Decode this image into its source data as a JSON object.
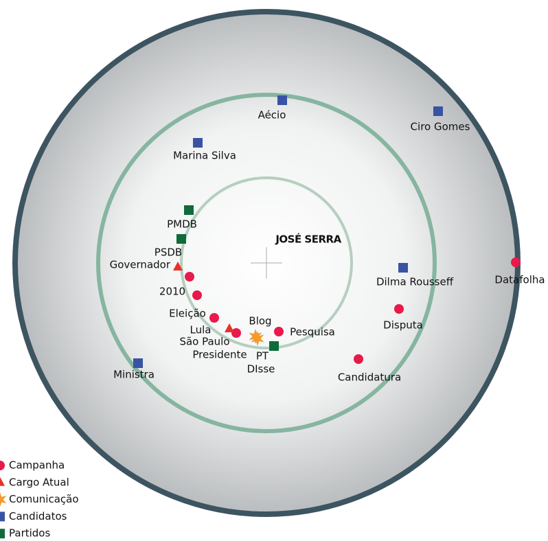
{
  "center": "JOSÉ SERRA",
  "legend": [
    {
      "label": "Campanha",
      "shape": "circle",
      "color": "#e8194b"
    },
    {
      "label": "Cargo Atual",
      "shape": "triangle",
      "color": "#e8312a"
    },
    {
      "label": "Comunicação",
      "shape": "star",
      "color": "#f39a2a"
    },
    {
      "label": "Candidatos",
      "shape": "square",
      "color": "#3953a4"
    },
    {
      "label": "Partidos",
      "shape": "square",
      "color": "#0f6b3a"
    }
  ],
  "nodes": [
    {
      "label": "Aécio",
      "group": 3
    },
    {
      "label": "Ciro Gomes",
      "group": 3
    },
    {
      "label": "Marina Silva",
      "group": 3
    },
    {
      "label": "PMDB",
      "group": 4
    },
    {
      "label": "PSDB",
      "group": 4
    },
    {
      "label": "Governador",
      "group": 1
    },
    {
      "label": "2010",
      "group": 0
    },
    {
      "label": "Eleição",
      "group": 0
    },
    {
      "label": "Lula",
      "group": 0
    },
    {
      "label": "São Paulo",
      "group": 0
    },
    {
      "label": "Presidente",
      "group": 1
    },
    {
      "label": "Blog",
      "group": 2
    },
    {
      "label": "DIsse",
      "group": 2
    },
    {
      "label": "PT",
      "group": 4
    },
    {
      "label": "Pesquisa",
      "group": 0
    },
    {
      "label": "Dilma Rousseff",
      "group": 3
    },
    {
      "label": "Disputa",
      "group": 0
    },
    {
      "label": "Candidatura",
      "group": 0
    },
    {
      "label": "Datafolha",
      "group": 0
    },
    {
      "label": "Ministra",
      "group": 3
    }
  ]
}
